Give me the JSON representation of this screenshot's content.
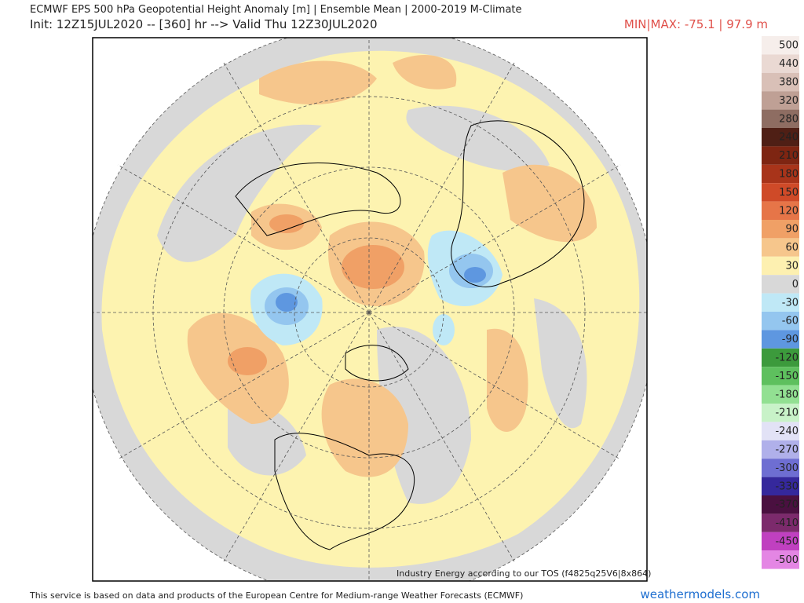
{
  "header": {
    "title": "ECMWF EPS 500 hPa Geopotential Height Anomaly [m] | Ensemble Mean | 2000-2019 M-Climate",
    "subtitle": "Init: 12Z15JUL2020 -- [360] hr --> Valid Thu 12Z30JUL2020",
    "minmax": "MIN|MAX: -75.1 | 97.9 m"
  },
  "map": {
    "attribution": "Industry Energy according to our TOS (f4825q25V6|8x864)"
  },
  "colorbar": {
    "values": [
      500,
      440,
      380,
      320,
      280,
      240,
      210,
      180,
      150,
      120,
      90,
      60,
      30,
      0,
      -30,
      -60,
      -90,
      -120,
      -150,
      -180,
      -210,
      -240,
      -270,
      -300,
      -330,
      -370,
      -410,
      -450,
      -500
    ],
    "colors": [
      "#f6eeeb",
      "#ead9d3",
      "#d9c0b7",
      "#bfa095",
      "#8e6d62",
      "#4f1f15",
      "#7e2512",
      "#a8341a",
      "#cf4a28",
      "#e67548",
      "#f0a066",
      "#f6c68c",
      "#fdf0b0",
      "#d8d8d8",
      "#bfe8f6",
      "#94c6ef",
      "#5e97e0",
      "#3c9a3c",
      "#5ec05e",
      "#92e092",
      "#c8f2c8",
      "#e2e2f6",
      "#b0b0ea",
      "#6e6ed2",
      "#35289c",
      "#4a1040",
      "#7c2a6c",
      "#c040c0",
      "#e486e4"
    ]
  },
  "footer": {
    "text": "This service is based on data and products of the European Centre for Medium-range Weather Forecasts (ECMWF)",
    "site": "weathermodels.com"
  }
}
